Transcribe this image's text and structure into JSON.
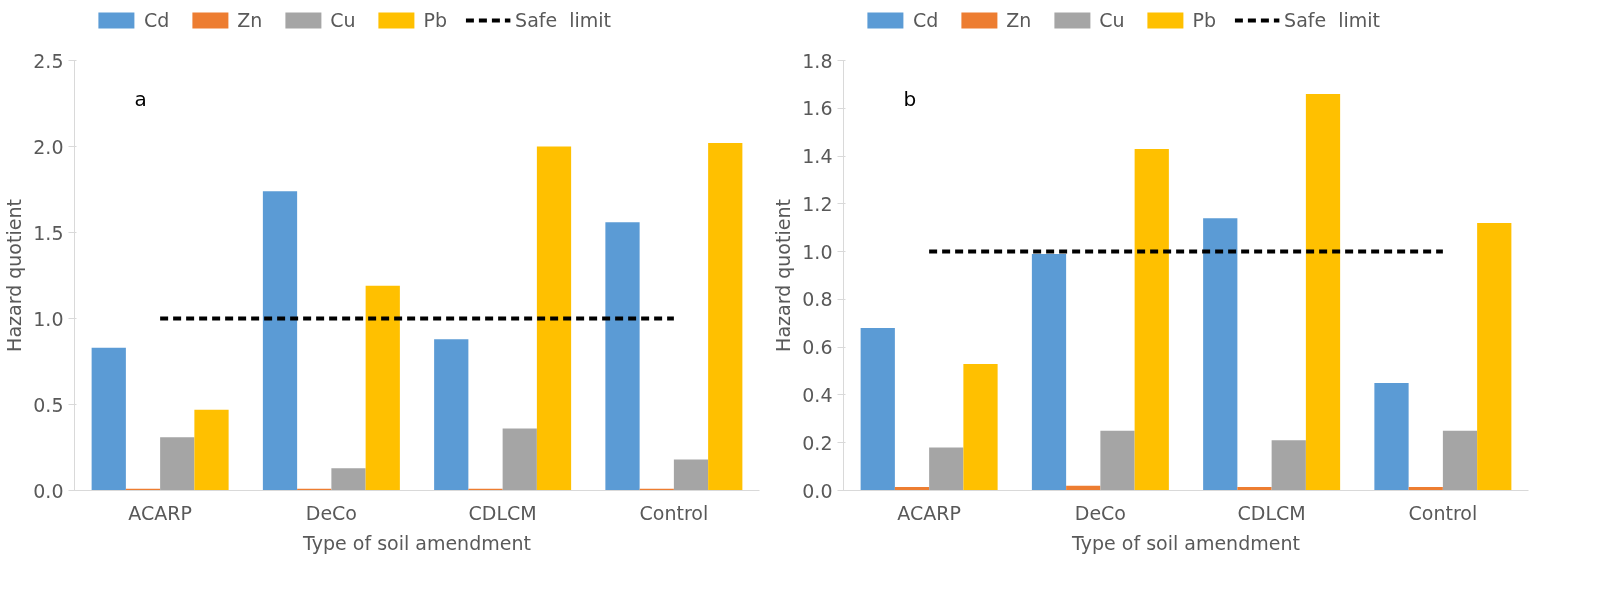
{
  "chart_data": [
    {
      "type": "bar",
      "categories": [
        "ACARP",
        "DeCo",
        "CDLCM",
        "Control"
      ],
      "xlabel": "Type of soil amendment",
      "ylabel": "Hazard quotient",
      "annotations": [
        "a"
      ],
      "series": [
        {
          "name": "Cd",
          "color": "#5b9bd5",
          "values": [
            0.83,
            1.74,
            0.88,
            1.56
          ]
        },
        {
          "name": "Zn",
          "color": "#ed7d31",
          "values": [
            0.01,
            0.01,
            0.01,
            0.01
          ]
        },
        {
          "name": "Cu",
          "color": "#a5a5a5",
          "values": [
            0.31,
            0.13,
            0.36,
            0.18
          ]
        },
        {
          "name": "Pb",
          "color": "#ffc000",
          "values": [
            0.47,
            1.19,
            2.0,
            2.02
          ]
        }
      ],
      "ref_lines": [
        {
          "axis": "y",
          "value": 1.0,
          "label": "Safe  limit",
          "color": "#000000",
          "line_style": "dashed"
        }
      ],
      "ylim": [
        0,
        2.5
      ],
      "yticks": [
        {
          "value": 0,
          "label": "0.0"
        },
        0.5,
        {
          "value": 1,
          "label": "1.0"
        },
        1.5,
        {
          "value": 2,
          "label": "2.0"
        },
        2.5
      ],
      "grid": false,
      "legend": "top"
    },
    {
      "type": "bar",
      "categories": [
        "ACARP",
        "DeCo",
        "CDLCM",
        "Control"
      ],
      "xlabel": "Type of soil amendment",
      "ylabel": "Hazard quotient",
      "annotations": [
        "b"
      ],
      "series": [
        {
          "name": "Cd",
          "color": "#5b9bd5",
          "values": [
            0.68,
            0.99,
            1.14,
            0.45
          ]
        },
        {
          "name": "Zn",
          "color": "#ed7d31",
          "values": [
            0.015,
            0.02,
            0.015,
            0.015
          ]
        },
        {
          "name": "Cu",
          "color": "#a5a5a5",
          "values": [
            0.18,
            0.25,
            0.21,
            0.25
          ]
        },
        {
          "name": "Pb",
          "color": "#ffc000",
          "values": [
            0.53,
            1.43,
            1.66,
            1.12
          ]
        }
      ],
      "ref_lines": [
        {
          "axis": "y",
          "value": 1.0,
          "label": "Safe  limit",
          "color": "#000000",
          "line_style": "dashed"
        }
      ],
      "ylim": [
        0,
        1.8
      ],
      "yticks": [
        {
          "value": 0,
          "label": "0.0"
        },
        0.2,
        0.4,
        0.6,
        0.8,
        {
          "value": 1,
          "label": "1.0"
        },
        1.2,
        1.4,
        1.6,
        1.8
      ],
      "grid": false,
      "legend": "top"
    }
  ]
}
